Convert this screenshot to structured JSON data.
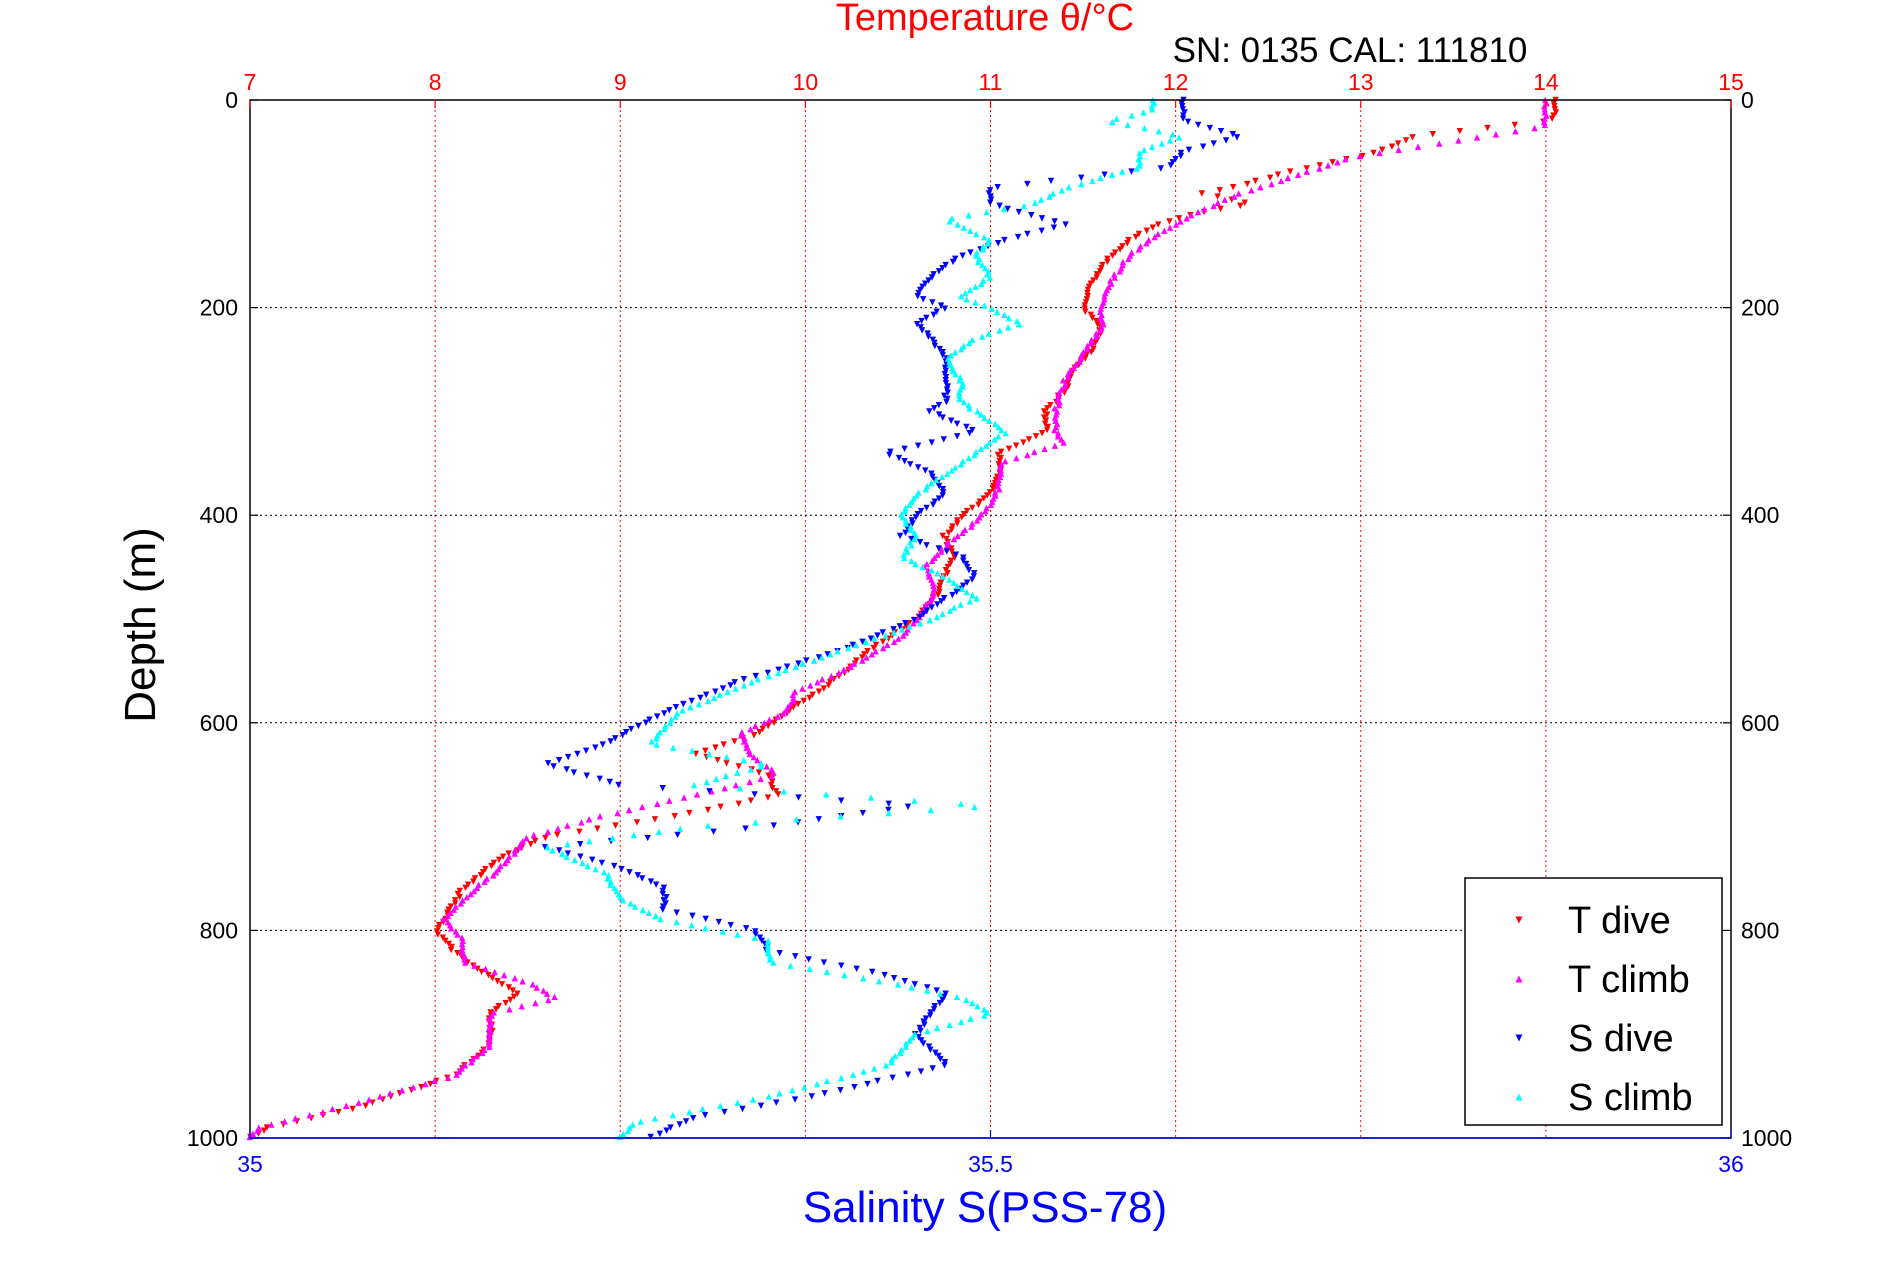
{
  "chart_data": {
    "type": "scatter",
    "title": "Temperature θ/°C",
    "subtitle": "SN: 0135  CAL: 111810",
    "top_axis": {
      "label": "Temperature θ/°C",
      "range": [
        7,
        15
      ],
      "ticks": [
        "7",
        "8",
        "9",
        "10",
        "11",
        "12",
        "13",
        "14",
        "15"
      ],
      "color": "#ff0000"
    },
    "bottom_axis": {
      "label": "Salinity S(PSS-78)",
      "range": [
        35,
        36
      ],
      "ticks": [
        "35",
        "35.5",
        "36"
      ],
      "color": "#0000ff"
    },
    "y_axis": {
      "label": "Depth (m)",
      "range": [
        0,
        1000
      ],
      "inverted": true,
      "ticks": [
        "0",
        "200",
        "400",
        "600",
        "800",
        "1000"
      ]
    },
    "grid": true,
    "legend_position": "bottom-right",
    "series": [
      {
        "name": "T dive",
        "axis": "temperature",
        "marker": "triangle-down",
        "color": "#ff0000",
        "depth": [
          0,
          10,
          20,
          35,
          50,
          70,
          85,
          90,
          100,
          110,
          120,
          135,
          150,
          175,
          200,
          220,
          240,
          260,
          280,
          300,
          320,
          340,
          360,
          380,
          400,
          420,
          440,
          460,
          480,
          500,
          530,
          560,
          590,
          610,
          630,
          650,
          670,
          690,
          710,
          730,
          760,
          790,
          800,
          820,
          840,
          860,
          880,
          910,
          940,
          970,
          990,
          1000
        ],
        "values": [
          14.05,
          14.05,
          14.03,
          13.3,
          13.1,
          12.6,
          12.3,
          12.15,
          12.4,
          12.1,
          11.9,
          11.75,
          11.65,
          11.55,
          11.5,
          11.6,
          11.55,
          11.45,
          11.4,
          11.3,
          11.3,
          11.05,
          11.05,
          11.0,
          10.85,
          10.75,
          10.8,
          10.75,
          10.7,
          10.6,
          10.35,
          10.15,
          9.9,
          9.75,
          9.4,
          9.8,
          9.85,
          9.3,
          8.6,
          8.35,
          8.15,
          8.05,
          8.0,
          8.1,
          8.25,
          8.45,
          8.3,
          8.3,
          8.1,
          7.6,
          7.1,
          7.0
        ]
      },
      {
        "name": "T climb",
        "axis": "temperature",
        "marker": "triangle-up",
        "color": "#ff00ff",
        "depth": [
          0,
          10,
          25,
          40,
          55,
          70,
          90,
          110,
          130,
          150,
          175,
          200,
          220,
          245,
          270,
          300,
          320,
          330,
          350,
          370,
          390,
          410,
          430,
          450,
          470,
          490,
          520,
          550,
          570,
          590,
          610,
          630,
          650,
          670,
          690,
          710,
          740,
          770,
          790,
          810,
          830,
          850,
          865,
          880,
          910,
          940,
          970,
          990,
          1000
        ],
        "values": [
          14.0,
          14.0,
          14.0,
          13.5,
          12.95,
          12.7,
          12.35,
          12.1,
          11.9,
          11.75,
          11.65,
          11.6,
          11.6,
          11.5,
          11.4,
          11.35,
          11.35,
          11.4,
          11.05,
          11.05,
          11.0,
          10.9,
          10.75,
          10.65,
          10.7,
          10.65,
          10.5,
          10.2,
          9.95,
          9.9,
          9.65,
          9.7,
          9.85,
          9.4,
          8.9,
          8.5,
          8.35,
          8.15,
          8.05,
          8.15,
          8.15,
          8.5,
          8.65,
          8.3,
          8.3,
          8.1,
          7.5,
          7.05,
          7.0
        ]
      }
    ],
    "series_salinity": [
      {
        "name": "S dive",
        "axis": "salinity",
        "marker": "triangle-down",
        "color": "#0000ff",
        "depth": [
          0,
          10,
          20,
          35,
          50,
          65,
          85,
          100,
          120,
          135,
          150,
          170,
          190,
          200,
          215,
          230,
          250,
          270,
          290,
          300,
          320,
          340,
          360,
          380,
          400,
          420,
          440,
          460,
          480,
          500,
          530,
          560,
          590,
          620,
          640,
          660,
          680,
          700,
          720,
          740,
          760,
          780,
          800,
          820,
          840,
          860,
          880,
          900,
          930,
          960,
          980,
          1000
        ],
        "values": [
          35.63,
          35.63,
          35.63,
          35.67,
          35.63,
          35.62,
          35.5,
          35.5,
          35.55,
          35.51,
          35.48,
          35.46,
          35.45,
          35.47,
          35.45,
          35.46,
          35.47,
          35.47,
          35.47,
          35.46,
          35.49,
          35.43,
          35.46,
          35.47,
          35.45,
          35.44,
          35.48,
          35.49,
          35.47,
          35.45,
          35.4,
          35.33,
          35.28,
          35.24,
          35.2,
          35.25,
          35.45,
          35.35,
          35.2,
          35.25,
          35.28,
          35.28,
          35.34,
          35.35,
          35.42,
          35.47,
          35.46,
          35.45,
          35.47,
          35.38,
          35.3,
          35.27
        ]
      },
      {
        "name": "S climb",
        "axis": "salinity",
        "marker": "triangle-up",
        "color": "#00ffff",
        "depth": [
          0,
          10,
          20,
          35,
          50,
          65,
          85,
          100,
          115,
          135,
          150,
          170,
          190,
          200,
          215,
          230,
          250,
          270,
          290,
          300,
          320,
          340,
          360,
          380,
          400,
          420,
          440,
          460,
          480,
          500,
          530,
          560,
          590,
          620,
          640,
          660,
          680,
          700,
          720,
          745,
          770,
          790,
          810,
          830,
          850,
          865,
          880,
          900,
          930,
          960,
          985,
          1000
        ],
        "values": [
          35.61,
          35.61,
          35.58,
          35.63,
          35.6,
          35.6,
          35.55,
          35.53,
          35.47,
          35.5,
          35.49,
          35.5,
          35.48,
          35.5,
          35.52,
          35.49,
          35.47,
          35.48,
          35.48,
          35.49,
          35.51,
          35.49,
          35.47,
          35.45,
          35.44,
          35.45,
          35.44,
          35.47,
          35.49,
          35.46,
          35.4,
          35.34,
          35.29,
          35.27,
          35.35,
          35.3,
          35.5,
          35.3,
          35.2,
          35.24,
          35.25,
          35.28,
          35.35,
          35.35,
          35.43,
          35.48,
          35.5,
          35.45,
          35.43,
          35.35,
          35.26,
          35.25
        ]
      }
    ],
    "legend": [
      "T dive",
      "T climb",
      "S dive",
      "S climb"
    ]
  }
}
